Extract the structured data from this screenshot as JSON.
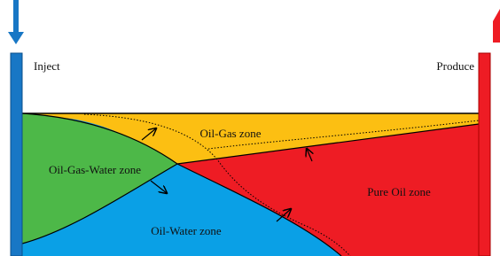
{
  "labels": {
    "inject": "Inject",
    "produce": "Produce"
  },
  "zones": [
    {
      "label": "Oil-Gas zone"
    },
    {
      "label": "Oil-Gas-Water zone"
    },
    {
      "label": "Pure Oil zone"
    },
    {
      "label": "Oil-Water zone"
    }
  ]
}
